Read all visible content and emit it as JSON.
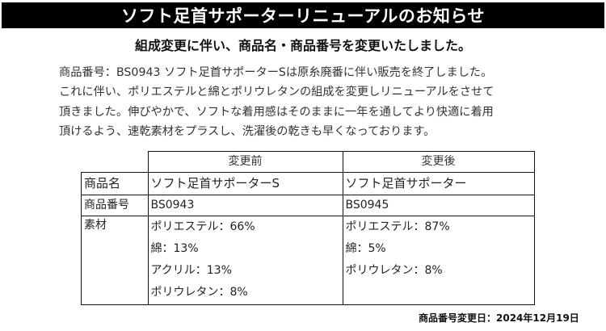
{
  "banner": {
    "title": "ソフト足首サポーターリニューアルのお知らせ"
  },
  "subtitle": "組成変更に伴い、商品名・商品番号を変更いたしました。",
  "body_lines": [
    "商品番号：BS0943 ソフト足首サポーターSは原糸廃番に伴い販売を終了しました。",
    "これに伴い、ポリエステルと綿とポリウレタンの組成を変更しリニューアルをさせて",
    "頂きました。伸びやかで、ソフトな着用感はそのままに一年を通してより快適に着用",
    "頂けるよう、速乾素材をプラスし、洗濯後の乾きも早くなっております。"
  ],
  "table": {
    "headers": {
      "before": "変更前",
      "after": "変更後"
    },
    "rows": {
      "name": {
        "label": "商品名",
        "before": "ソフト足首サポーターS",
        "after": "ソフト足首サポーター"
      },
      "number": {
        "label": "商品番号",
        "before": "BS0943",
        "after": "BS0945"
      },
      "material": {
        "label": "素材",
        "before": [
          "ポリエステル：66%",
          "綿：13%",
          "アクリル：13%",
          "ポリウレタン：8%"
        ],
        "after": [
          "ポリエステル：87%",
          "綿：5%",
          "ポリウレタン：8%"
        ]
      }
    }
  },
  "footer": "商品番号変更日：2024年12月19日"
}
